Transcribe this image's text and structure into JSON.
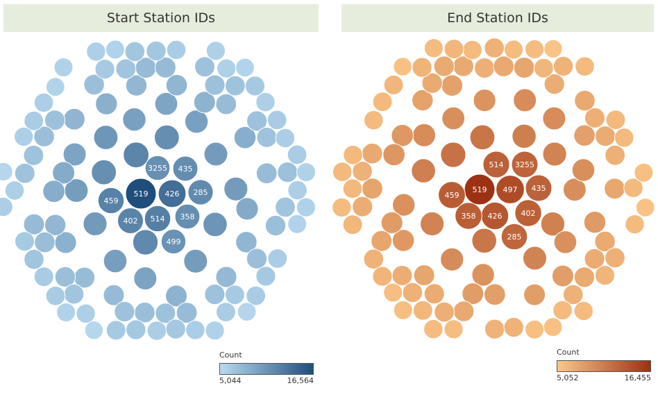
{
  "chart_data": [
    {
      "type": "packed_bubble",
      "title": "Start Station IDs",
      "legend": {
        "title": "Count",
        "min": 5044,
        "max": 16564,
        "min_label": "5,044",
        "max_label": "16,564"
      },
      "colors": {
        "low": "#b9daf0",
        "high": "#1f4e7c"
      },
      "labeled_bubbles": [
        {
          "label": "519",
          "value": 16564
        },
        {
          "label": "426",
          "value": 13900
        },
        {
          "label": "459",
          "value": 12300
        },
        {
          "label": "402",
          "value": 12100
        },
        {
          "label": "514",
          "value": 12500
        },
        {
          "label": "3255",
          "value": 11200
        },
        {
          "label": "435",
          "value": 11400
        },
        {
          "label": "285",
          "value": 11600
        },
        {
          "label": "358",
          "value": 11300
        },
        {
          "label": "499",
          "value": 11000
        }
      ]
    },
    {
      "type": "packed_bubble",
      "title": "End Station IDs",
      "legend": {
        "title": "Count",
        "min": 5052,
        "max": 16455,
        "min_label": "5,052",
        "max_label": "16,455"
      },
      "colors": {
        "low": "#fcc788",
        "high": "#9d3113"
      },
      "labeled_bubbles": [
        {
          "label": "519",
          "value": 16455
        },
        {
          "label": "497",
          "value": 14400
        },
        {
          "label": "426",
          "value": 13600
        },
        {
          "label": "459",
          "value": 13200
        },
        {
          "label": "358",
          "value": 13000
        },
        {
          "label": "402",
          "value": 12900
        },
        {
          "label": "514",
          "value": 12800
        },
        {
          "label": "435",
          "value": 12700
        },
        {
          "label": "3255",
          "value": 12600
        },
        {
          "label": "285",
          "value": 12400
        }
      ]
    }
  ]
}
